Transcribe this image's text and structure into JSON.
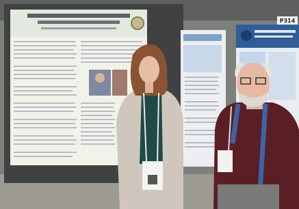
{
  "sign": {
    "label": "P314"
  }
}
